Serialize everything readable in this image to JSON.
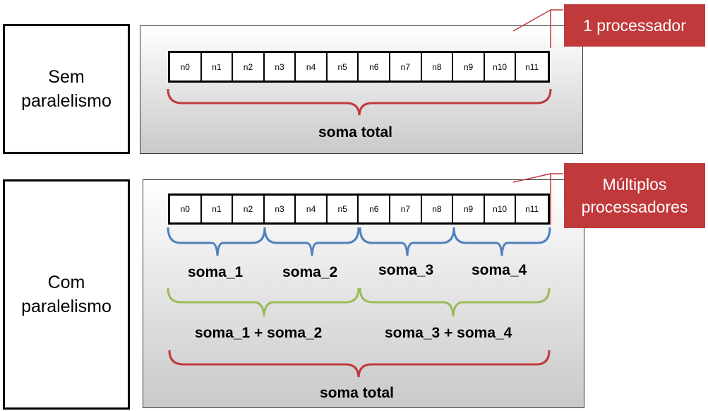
{
  "rows": [
    {
      "label": "Sem paralelismo",
      "cells": [
        "n0",
        "n1",
        "n2",
        "n3",
        "n4",
        "n5",
        "n6",
        "n7",
        "n8",
        "n9",
        "n10",
        "n11"
      ],
      "total_label": "soma total",
      "callout": "1 processador"
    },
    {
      "label": "Com paralelismo",
      "cells": [
        "n0",
        "n1",
        "n2",
        "n3",
        "n4",
        "n5",
        "n6",
        "n7",
        "n8",
        "n9",
        "n10",
        "n11"
      ],
      "partials": [
        "soma_1",
        "soma_2",
        "soma_3",
        "soma_4"
      ],
      "pairs": [
        "soma_1 + soma_2",
        "soma_3 + soma_4"
      ],
      "total_label": "soma total",
      "callout": "Múltiplos processadores"
    }
  ],
  "colors": {
    "brace_total": "#c0393b",
    "brace_partial": "#4f81bd",
    "brace_pair": "#9bbb59",
    "callout_bg": "#c0393b"
  }
}
